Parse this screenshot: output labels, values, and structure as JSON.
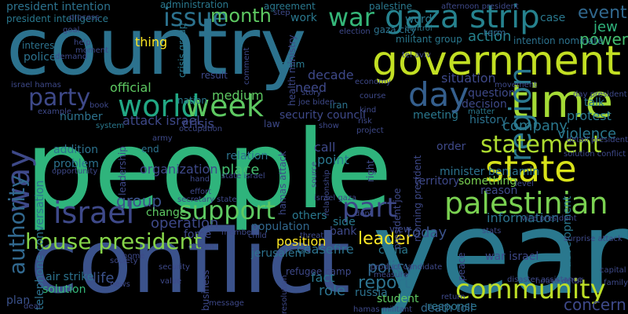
{
  "words": [
    {
      "text": "people",
      "color": "#2fb47c"
    },
    {
      "text": "year",
      "color": "#2a788e"
    },
    {
      "text": "country",
      "color": "#2c728e"
    },
    {
      "text": "conflict",
      "color": "#3b528b"
    },
    {
      "text": "government",
      "color": "#c2df23"
    },
    {
      "text": "gaza strip",
      "color": "#26828e"
    },
    {
      "text": "time",
      "color": "#a5db36"
    },
    {
      "text": "state",
      "color": "#d8e219"
    },
    {
      "text": "world",
      "color": "#22a884"
    },
    {
      "text": "week",
      "color": "#5ec962"
    },
    {
      "text": "day",
      "color": "#355f8d"
    },
    {
      "text": "region",
      "color": "#2a788e"
    },
    {
      "text": "statement",
      "color": "#addc30"
    },
    {
      "text": "palestinian",
      "color": "#7ad151"
    },
    {
      "text": "community",
      "color": "#bddf26"
    },
    {
      "text": "support",
      "color": "#5ec962"
    },
    {
      "text": "israel",
      "color": "#3e4989"
    },
    {
      "text": "part",
      "color": "#3e4989"
    },
    {
      "text": "house president",
      "color": "#86d549"
    },
    {
      "text": "way",
      "color": "#3e4989"
    },
    {
      "text": "authority",
      "color": "#31688e"
    },
    {
      "text": "war",
      "color": "#35b779"
    },
    {
      "text": "issue",
      "color": "#2c728e"
    },
    {
      "text": "party",
      "color": "#3e4989"
    },
    {
      "text": "month",
      "color": "#5ec962"
    },
    {
      "text": "event",
      "color": "#31688e"
    },
    {
      "text": "jew",
      "color": "#2fb47c"
    },
    {
      "text": "power",
      "color": "#44bf70"
    },
    {
      "text": "leader",
      "color": "#fde725"
    },
    {
      "text": "report",
      "color": "#2c728e"
    },
    {
      "text": "policy",
      "color": "#31688e"
    },
    {
      "text": "action",
      "color": "#26828e"
    },
    {
      "text": "situation",
      "color": "#3e4989"
    },
    {
      "text": "company",
      "color": "#2a788e"
    },
    {
      "text": "group",
      "color": "#3b528b"
    },
    {
      "text": "today",
      "color": "#3b528b"
    },
    {
      "text": "operation",
      "color": "#3e4989"
    },
    {
      "text": "violence",
      "color": "#2a788e"
    },
    {
      "text": "protest",
      "color": "#2a788e"
    },
    {
      "text": "life",
      "color": "#3b528b"
    },
    {
      "text": "role",
      "color": "#2c728e"
    },
    {
      "text": "concern",
      "color": "#3e4989"
    },
    {
      "text": "official",
      "color": "#5ec962"
    },
    {
      "text": "thing",
      "color": "#fde725"
    },
    {
      "text": "point",
      "color": "#2a788e"
    },
    {
      "text": "place",
      "color": "#44bf70"
    },
    {
      "text": "ceasefire",
      "color": "#2c728e"
    },
    {
      "text": "position",
      "color": "#fde725"
    },
    {
      "text": "fact",
      "color": "#2a788e"
    },
    {
      "text": "others",
      "color": "#2a788e"
    },
    {
      "text": "side",
      "color": "#2a788e"
    },
    {
      "text": "student",
      "color": "#5ec962"
    },
    {
      "text": "response",
      "color": "#2a788e"
    },
    {
      "text": "death toll",
      "color": "#31688e"
    },
    {
      "text": "bank",
      "color": "#3e4989"
    },
    {
      "text": "china",
      "color": "#2a788e"
    },
    {
      "text": "russia",
      "color": "#2c728e"
    },
    {
      "text": "plan",
      "color": "#3b528b"
    },
    {
      "text": "solution",
      "color": "#35b779"
    },
    {
      "text": "change",
      "color": "#5ec962"
    },
    {
      "text": "force",
      "color": "#3e4989"
    },
    {
      "text": "population",
      "color": "#31688e"
    },
    {
      "text": "jerusalem",
      "color": "#2c728e"
    },
    {
      "text": "medium",
      "color": "#5ec962"
    },
    {
      "text": "nation",
      "color": "#2a788e"
    },
    {
      "text": "crisis",
      "color": "#3e4989"
    },
    {
      "text": "attack israel",
      "color": "#3e4989"
    },
    {
      "text": "security council",
      "color": "#3e4989"
    },
    {
      "text": "need",
      "color": "#3e4989"
    },
    {
      "text": "decade",
      "color": "#3e4989"
    },
    {
      "text": "meeting",
      "color": "#2a788e"
    },
    {
      "text": "question",
      "color": "#3e4989"
    },
    {
      "text": "decision",
      "color": "#3e4989"
    },
    {
      "text": "history",
      "color": "#2c728e"
    },
    {
      "text": "matter",
      "color": "#2a788e"
    },
    {
      "text": "talk",
      "color": "#2a788e"
    },
    {
      "text": "order",
      "color": "#3e4989"
    },
    {
      "text": "minister benjamin",
      "color": "#2c728e"
    },
    {
      "text": "something",
      "color": "#7ad151"
    },
    {
      "text": "reason",
      "color": "#3e4989"
    },
    {
      "text": "territory",
      "color": "#3e4989"
    },
    {
      "text": "information",
      "color": "#2c728e"
    },
    {
      "text": "development",
      "color": "#2a788e"
    },
    {
      "text": "war israel",
      "color": "#3e4989"
    },
    {
      "text": "organization",
      "color": "#3e4989"
    },
    {
      "text": "relation",
      "color": "#2c728e"
    },
    {
      "text": "call",
      "color": "#3e4989"
    },
    {
      "text": "claim",
      "color": "#2a788e"
    },
    {
      "text": "iran",
      "color": "#2c728e"
    },
    {
      "text": "work",
      "color": "#2a788e"
    },
    {
      "text": "word",
      "color": "#2a788e"
    },
    {
      "text": "case",
      "color": "#2a788e"
    },
    {
      "text": "term",
      "color": "#31688e"
    },
    {
      "text": "agreement",
      "color": "#2a788e"
    },
    {
      "text": "palestine",
      "color": "#2a788e"
    },
    {
      "text": "president intention",
      "color": "#2c728e"
    },
    {
      "text": "president intelligence",
      "color": "#2a788e"
    },
    {
      "text": "administration",
      "color": "#2a788e"
    },
    {
      "text": "crisis group",
      "color": "#2a788e"
    },
    {
      "text": "militant group",
      "color": "#2a788e"
    },
    {
      "text": "intention nominate",
      "color": "#2c728e"
    },
    {
      "text": "gaza city",
      "color": "#2c728e"
    },
    {
      "text": "police",
      "color": "#2c728e"
    },
    {
      "text": "interest",
      "color": "#2c728e"
    },
    {
      "text": "result",
      "color": "#3e4989"
    },
    {
      "text": "number",
      "color": "#2c728e"
    },
    {
      "text": "addition",
      "color": "#2c728e"
    },
    {
      "text": "problem",
      "color": "#2c728e"
    },
    {
      "text": "end",
      "color": "#2c728e"
    },
    {
      "text": "air strike",
      "color": "#2c728e"
    },
    {
      "text": "right",
      "color": "#3e4989"
    },
    {
      "text": "telephone conversation",
      "color": "#2c728e"
    },
    {
      "text": "morning president",
      "color": "#3e4989"
    },
    {
      "text": "president joe",
      "color": "#3e4989"
    },
    {
      "text": "hamas attack",
      "color": "#3e4989"
    },
    {
      "text": "health ministry",
      "color": "#3e4989"
    },
    {
      "text": "refugee camp",
      "color": "#3e4989"
    },
    {
      "text": "business",
      "color": "#3e4989"
    },
    {
      "text": "peace",
      "color": "#3e4989"
    },
    {
      "text": "law",
      "color": "#3e4989"
    },
    {
      "text": "view",
      "color": "#3e4989"
    },
    {
      "text": "control",
      "color": "#2a788e"
    },
    {
      "text": "process",
      "color": "#3e4989"
    },
    {
      "text": "security",
      "color": "#3e4989"
    },
    {
      "text": "system",
      "color": "#2a788e"
    },
    {
      "text": "army",
      "color": "#3e4989"
    },
    {
      "text": "leadership",
      "color": "#3e4989"
    },
    {
      "text": "secretary state",
      "color": "#3e4989"
    },
    {
      "text": "state israel",
      "color": "#3e4989"
    },
    {
      "text": "member",
      "color": "#3e4989"
    },
    {
      "text": "citizen",
      "color": "#3e4989"
    },
    {
      "text": "capital",
      "color": "#3e4989"
    },
    {
      "text": "family",
      "color": "#3e4989"
    },
    {
      "text": "disaster assistance",
      "color": "#3e4989"
    },
    {
      "text": "house detail",
      "color": "#3e4989"
    },
    {
      "text": "return",
      "color": "#3e4989"
    },
    {
      "text": "hamas militant",
      "color": "#3e4989"
    },
    {
      "text": "economy",
      "color": "#3e4989"
    },
    {
      "text": "movement",
      "color": "#3e4989"
    },
    {
      "text": "course",
      "color": "#3e4989"
    },
    {
      "text": "story",
      "color": "#3e4989"
    },
    {
      "text": "book",
      "color": "#3e4989"
    },
    {
      "text": "example",
      "color": "#3e4989"
    },
    {
      "text": "moment",
      "color": "#3e4989"
    },
    {
      "text": "help",
      "color": "#3e4989"
    },
    {
      "text": "goal",
      "color": "#3e4989"
    },
    {
      "text": "israel hamas",
      "color": "#3e4989"
    },
    {
      "text": "dont",
      "color": "#3e4989"
    },
    {
      "text": "level",
      "color": "#3e4989"
    },
    {
      "text": "surprise attack",
      "color": "#3e4989"
    },
    {
      "text": "vice president",
      "color": "#3e4989"
    },
    {
      "text": "solution conflict",
      "color": "#3e4989"
    },
    {
      "text": "detail president",
      "color": "#3e4989"
    },
    {
      "text": "day president",
      "color": "#3e4989"
    },
    {
      "text": "afternoon president",
      "color": "#3e4989"
    },
    {
      "text": "election",
      "color": "#3e4989"
    },
    {
      "text": "tel aviv",
      "color": "#3e4989"
    },
    {
      "text": "joe biden",
      "color": "#3e4989"
    },
    {
      "text": "risk",
      "color": "#3e4989"
    },
    {
      "text": "project",
      "color": "#3e4989"
    },
    {
      "text": "effort",
      "color": "#3e4989"
    },
    {
      "text": "threat",
      "color": "#3e4989"
    },
    {
      "text": "child",
      "color": "#3e4989"
    },
    {
      "text": "home",
      "color": "#3e4989"
    },
    {
      "text": "news",
      "color": "#3e4989"
    },
    {
      "text": "society",
      "color": "#3e4989"
    },
    {
      "text": "deal",
      "color": "#3e4989"
    },
    {
      "text": "value",
      "color": "#3e4989"
    },
    {
      "text": "measure",
      "color": "#3e4989"
    },
    {
      "text": "resolution",
      "color": "#3e4989"
    },
    {
      "text": "source",
      "color": "#3e4989"
    },
    {
      "text": "relationship",
      "color": "#3e4989"
    },
    {
      "text": "show",
      "color": "#3e4989"
    },
    {
      "text": "kind",
      "color": "#3e4989"
    },
    {
      "text": "demand",
      "color": "#3e4989"
    },
    {
      "text": "opportunity",
      "color": "#3e4989"
    },
    {
      "text": "comment",
      "color": "#3e4989"
    },
    {
      "text": "step",
      "color": "#3e4989"
    },
    {
      "text": "message",
      "color": "#3e4989"
    },
    {
      "text": "product candidate",
      "color": "#3e4989"
    },
    {
      "text": "israel gaza",
      "color": "#3e4989"
    },
    {
      "text": "stats",
      "color": "#3e4989"
    },
    {
      "text": "hand",
      "color": "#3e4989"
    },
    {
      "text": "occupation",
      "color": "#3e4989"
    }
  ]
}
